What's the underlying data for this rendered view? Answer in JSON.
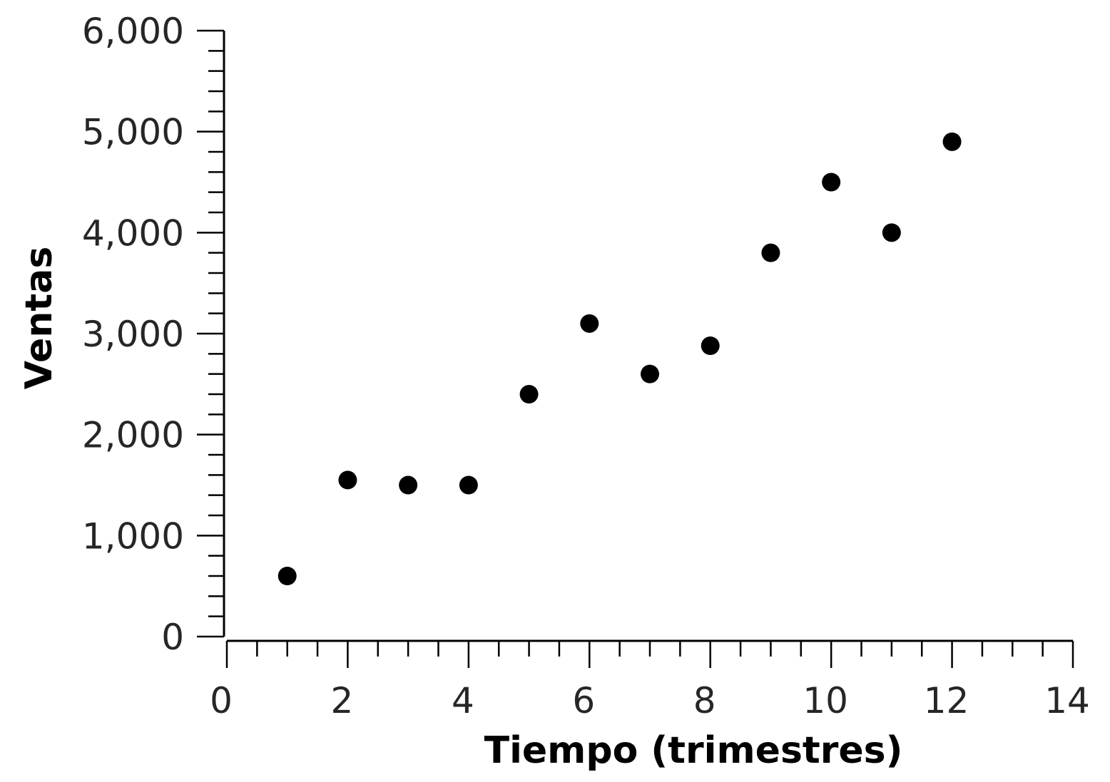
{
  "chart_data": {
    "type": "scatter",
    "xlabel": "Tiempo (trimestres)",
    "ylabel": "Ventas",
    "xlim": [
      0,
      14
    ],
    "ylim": [
      0,
      6000
    ],
    "x_ticks": [
      0,
      2,
      4,
      6,
      8,
      10,
      12,
      14
    ],
    "x_tick_labels": [
      "0",
      "2",
      "4",
      "6",
      "8",
      "10",
      "12",
      "14"
    ],
    "x_minor_step": 0.5,
    "y_ticks": [
      0,
      1000,
      2000,
      3000,
      4000,
      5000,
      6000
    ],
    "y_tick_labels": [
      "0",
      "1,000",
      "2,000",
      "3,000",
      "4,000",
      "5,000",
      "6,000"
    ],
    "y_minor_step": 200,
    "grid": false,
    "point_color": "#000000",
    "series": [
      {
        "x": [
          1,
          2,
          3,
          4,
          5,
          6,
          7,
          8,
          9,
          10,
          11,
          12
        ],
        "y": [
          600,
          1550,
          1500,
          1500,
          2400,
          3100,
          2600,
          2880,
          3800,
          4500,
          4000,
          4900
        ]
      }
    ]
  }
}
